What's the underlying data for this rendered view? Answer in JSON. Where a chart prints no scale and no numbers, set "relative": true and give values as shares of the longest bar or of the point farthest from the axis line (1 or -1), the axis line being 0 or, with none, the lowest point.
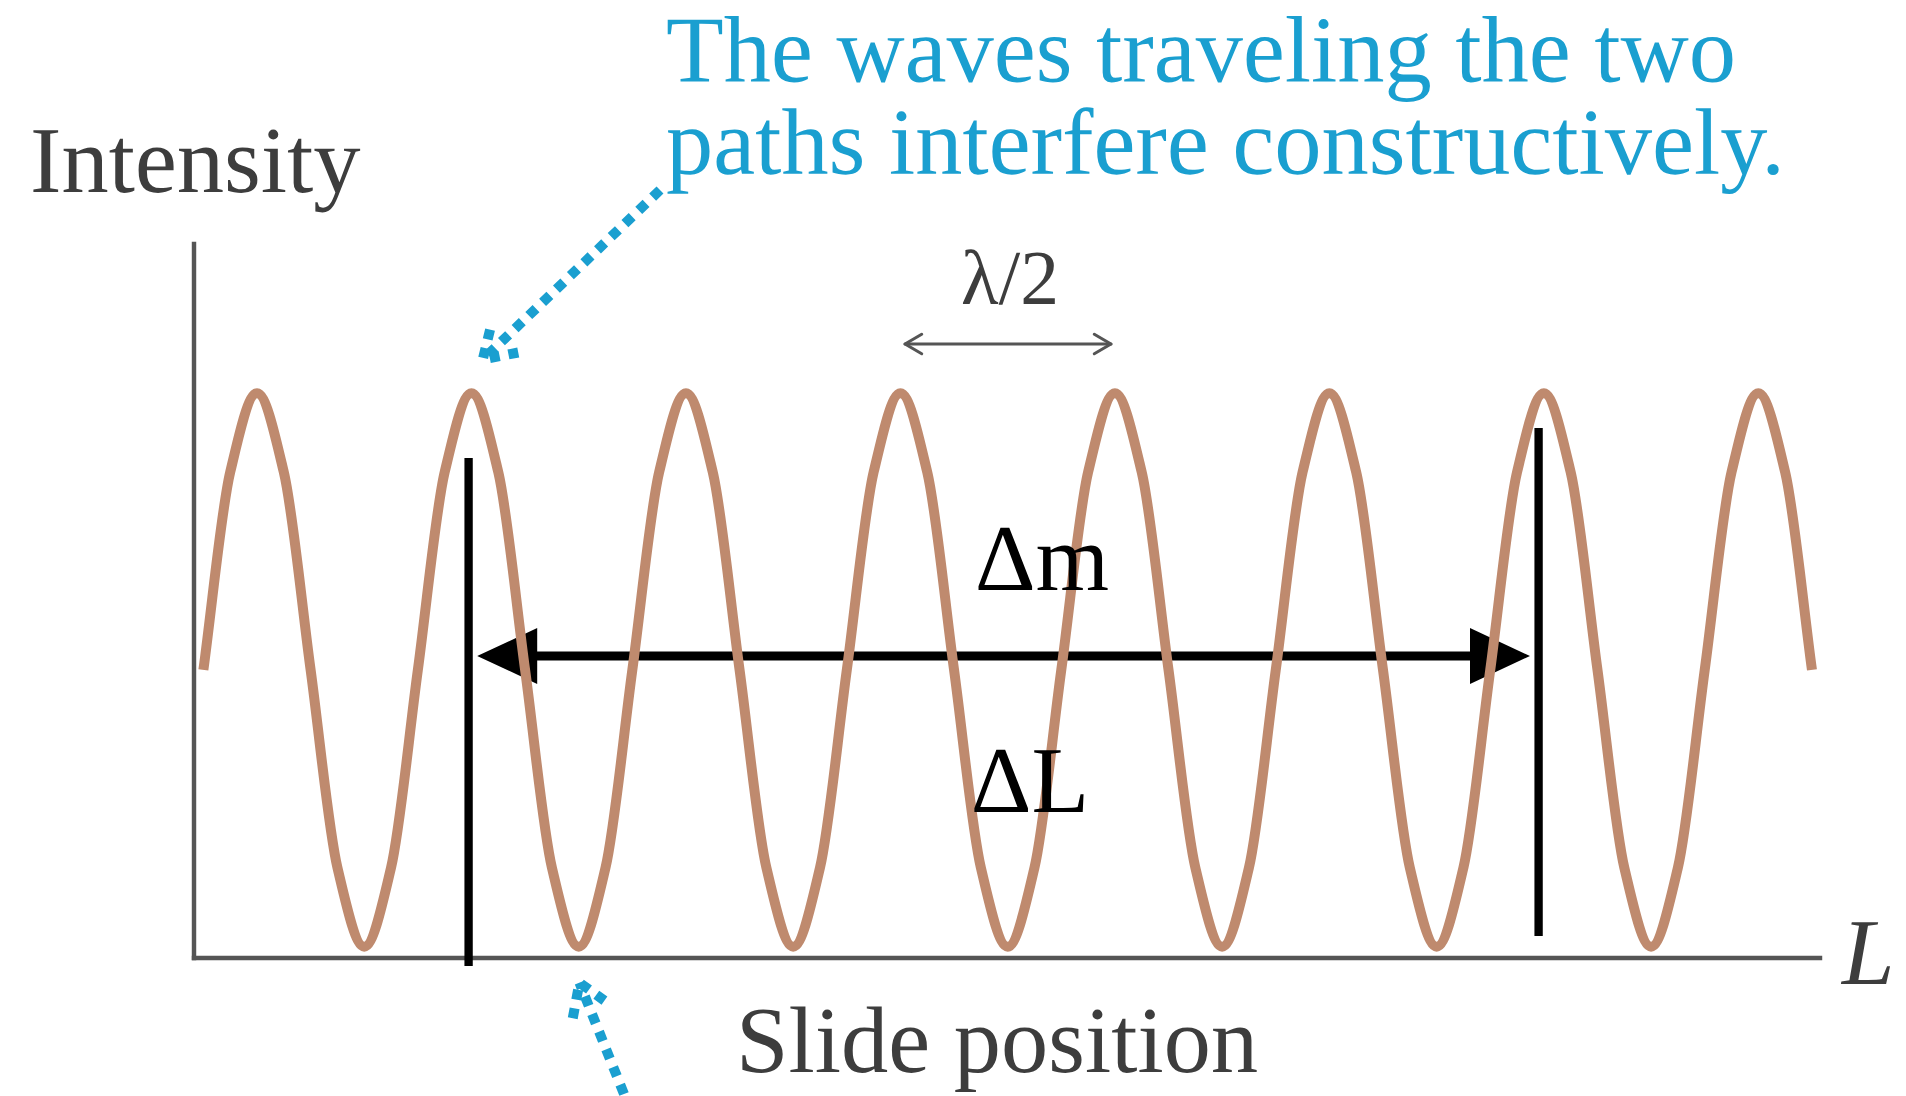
{
  "chart_data": {
    "type": "line",
    "relative": true,
    "ylabel": "Intensity",
    "xlabel": "L",
    "categories": [
      null,
      null,
      null,
      null,
      null,
      null,
      null,
      null,
      null,
      null,
      null,
      null,
      null,
      null,
      null,
      null,
      null,
      null,
      null,
      null,
      null,
      null,
      null,
      null,
      null,
      null,
      null,
      null,
      null,
      null,
      null,
      null,
      null,
      null,
      null,
      null,
      null,
      null,
      null,
      null,
      null,
      null,
      null,
      null,
      null,
      null,
      null,
      null,
      null,
      null,
      null,
      null,
      null,
      null,
      null,
      null,
      null,
      null,
      null,
      null,
      null
    ],
    "series": [
      {
        "color": "#bf8a6e",
        "values": [
          0.51,
          0.86,
          1,
          0.86,
          0.51,
          0.16,
          0.02,
          0.16,
          0.51,
          0.86,
          1,
          0.86,
          0.51,
          0.16,
          0.02,
          0.16,
          0.51,
          0.86,
          1,
          0.86,
          0.51,
          0.16,
          0.02,
          0.16,
          0.51,
          0.86,
          1,
          0.86,
          0.51,
          0.16,
          0.02,
          0.16,
          0.51,
          0.86,
          1,
          0.86,
          0.51,
          0.16,
          0.02,
          0.16,
          0.51,
          0.86,
          1,
          0.86,
          0.51,
          0.16,
          0.02,
          0.16,
          0.51,
          0.86,
          1,
          0.86,
          0.51,
          0.16,
          0.02,
          0.16,
          0.51,
          0.86,
          1,
          0.86,
          0.51
        ]
      }
    ],
    "annotations": [
      "The waves traveling the two paths interfere constructively.",
      "λ/2",
      "Δm",
      "ΔL",
      "Slide position"
    ]
  }
}
